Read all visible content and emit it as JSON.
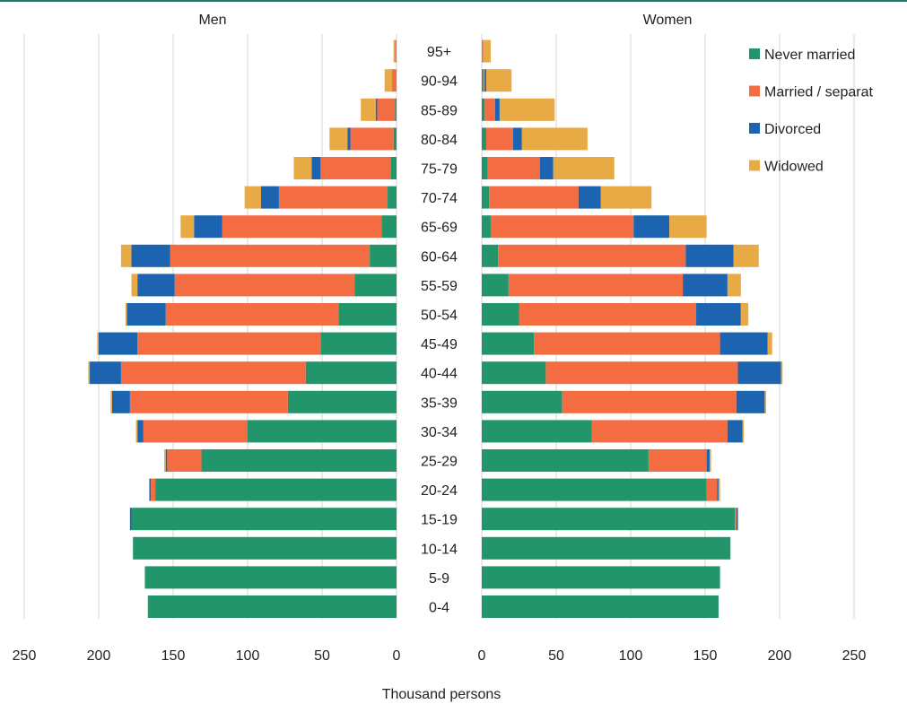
{
  "chart_data": {
    "type": "bar",
    "orientation": "horizontal",
    "layout": "population-pyramid",
    "panels": [
      "Men",
      "Women"
    ],
    "categories": [
      "0-4",
      "5-9",
      "10-14",
      "15-19",
      "20-24",
      "25-29",
      "30-34",
      "35-39",
      "40-44",
      "45-49",
      "50-54",
      "55-59",
      "60-64",
      "65-69",
      "70-74",
      "75-79",
      "80-84",
      "85-89",
      "90-94",
      "95+"
    ],
    "xlabel": "Thousand persons",
    "xlim": [
      0,
      250
    ],
    "xticks": [
      "0",
      "50",
      "100",
      "150",
      "200",
      "250"
    ],
    "grid": true,
    "legend_position": "top-right",
    "legend_labels": [
      "Never married",
      "Married / separat",
      "Divorced",
      "Widowed"
    ],
    "series": [
      {
        "name": "Never married",
        "color": "#23956b",
        "men": [
          167,
          169,
          177,
          178,
          162,
          131,
          100,
          73,
          61,
          51,
          39,
          28,
          18,
          10,
          6,
          4,
          2,
          1,
          0,
          0
        ],
        "women": [
          159,
          160,
          167,
          170,
          151,
          112,
          74,
          54,
          43,
          35,
          25,
          18,
          11,
          6,
          5,
          4,
          3,
          2,
          1,
          0
        ]
      },
      {
        "name": "Married / separat",
        "color": "#f36c42",
        "men": [
          0,
          0,
          0,
          0,
          3,
          23,
          70,
          106,
          124,
          123,
          116,
          121,
          134,
          107,
          73,
          47,
          29,
          12,
          3,
          1
        ],
        "women": [
          0,
          0,
          0,
          1,
          7,
          39,
          91,
          117,
          129,
          125,
          119,
          117,
          126,
          96,
          60,
          35,
          18,
          7,
          1,
          1
        ]
      },
      {
        "name": "Divorced",
        "color": "#1c64b0",
        "men": [
          0,
          0,
          0,
          1,
          1,
          1,
          4,
          12,
          21,
          26,
          26,
          25,
          26,
          19,
          12,
          6,
          2,
          1,
          0,
          0
        ],
        "women": [
          0,
          0,
          0,
          1,
          1,
          2,
          10,
          19,
          29,
          32,
          30,
          30,
          32,
          24,
          15,
          9,
          6,
          3,
          1,
          0
        ]
      },
      {
        "name": "Widowed",
        "color": "#e8aa45",
        "men": [
          0,
          0,
          0,
          0,
          0,
          1,
          1,
          1,
          1,
          1,
          1,
          4,
          7,
          9,
          11,
          12,
          12,
          10,
          5,
          1
        ],
        "women": [
          0,
          0,
          0,
          0,
          1,
          1,
          1,
          1,
          1,
          3,
          5,
          9,
          17,
          25,
          34,
          41,
          44,
          37,
          17,
          5
        ]
      }
    ]
  }
}
